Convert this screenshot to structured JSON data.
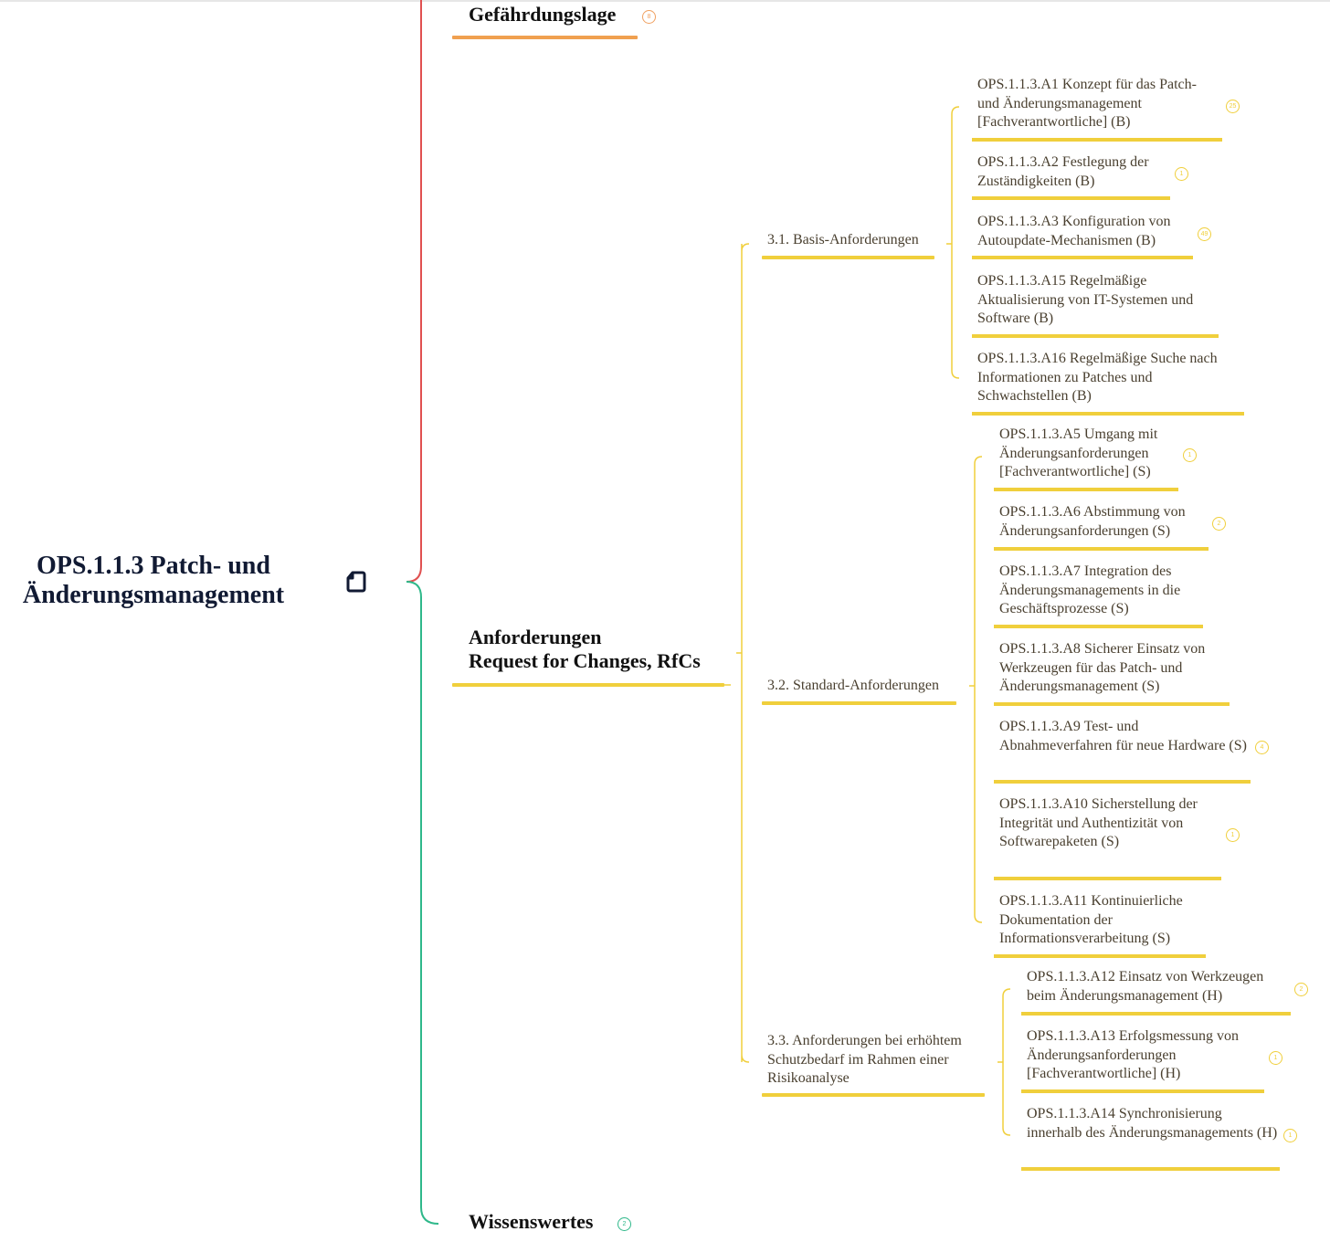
{
  "colors": {
    "red_branch": "#e05050",
    "green_branch": "#2fb88a",
    "orange_accent": "#f0a050",
    "yellow_accent": "#f0cf3c"
  },
  "root": {
    "line1": "OPS.1.1.3 Patch- und",
    "line2": "Änderungsmanagement",
    "icon": "note-icon"
  },
  "branches": {
    "gefaehrdung": {
      "label": "Gefährdungslage",
      "badge": "8"
    },
    "anforderungen": {
      "line1": "Anforderungen",
      "line2": "Request for Changes, RfCs"
    },
    "wissenswertes": {
      "label": "Wissenswertes",
      "badge": "2"
    }
  },
  "groups": [
    {
      "label": "3.1. Basis-Anforderungen",
      "items": [
        {
          "text": "OPS.1.1.3.A1 Konzept für das Patch- und Änderungsmanagement [Fachverantwortliche] (B)",
          "badge": "25"
        },
        {
          "text": "OPS.1.1.3.A2 Festlegung der Zuständigkeiten (B)",
          "badge": "1"
        },
        {
          "text": "OPS.1.1.3.A3 Konfiguration von Autoupdate-Mechanismen (B)",
          "badge": "49"
        },
        {
          "text": "OPS.1.1.3.A15 Regelmäßige Aktualisierung von IT-Systemen und Software (B)"
        },
        {
          "text": "OPS.1.1.3.A16 Regelmäßige Suche nach Informationen zu Patches und Schwachstellen (B)"
        }
      ]
    },
    {
      "label": "3.2. Standard-Anforderungen",
      "items": [
        {
          "text": "OPS.1.1.3.A5 Umgang mit Änderungsanforderungen [Fachverantwortliche] (S)",
          "badge": "1"
        },
        {
          "text": "OPS.1.1.3.A6 Abstimmung von Änderungsanforderungen (S)",
          "badge": "2"
        },
        {
          "text": "OPS.1.1.3.A7 Integration des Änderungsmanagements in die Geschäftsprozesse (S)"
        },
        {
          "text": "OPS.1.1.3.A8 Sicherer Einsatz von Werkzeugen für das Patch- und Änderungsmanagement (S)"
        },
        {
          "text": "OPS.1.1.3.A9 Test- und Abnahmeverfahren für neue Hardware (S)",
          "badge": "4"
        },
        {
          "text": "OPS.1.1.3.A10 Sicherstellung der Integrität und Authentizität von Softwarepaketen (S)",
          "badge": "1"
        },
        {
          "text": "OPS.1.1.3.A11 Kontinuierliche Dokumentation der Informationsverarbeitung (S)"
        }
      ]
    },
    {
      "label": "3.3. Anforderungen bei erhöhtem Schutzbedarf im Rahmen einer Risikoanalyse",
      "items": [
        {
          "text": "OPS.1.1.3.A12 Einsatz von Werkzeugen beim Änderungsmanagement (H)",
          "badge": "2"
        },
        {
          "text": "OPS.1.1.3.A13 Erfolgsmessung von Änderungsanforderungen [Fachverantwortliche] (H)",
          "badge": "1"
        },
        {
          "text": "OPS.1.1.3.A14 Synchronisierung innerhalb des Änderungsmanagements (H)",
          "badge": "1"
        }
      ]
    }
  ]
}
